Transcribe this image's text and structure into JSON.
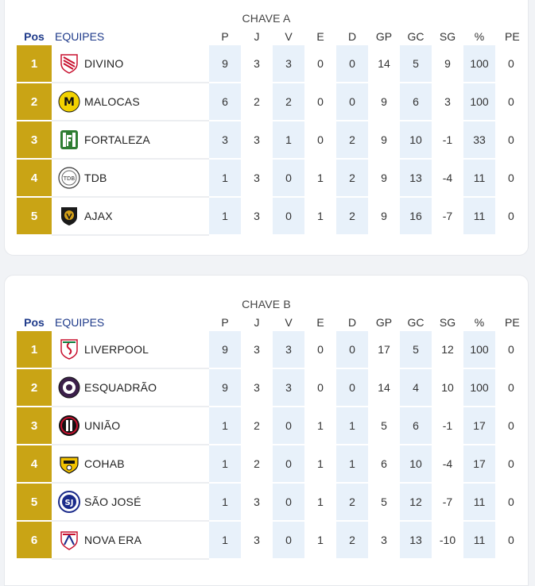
{
  "headers": {
    "pos": "Pos",
    "team": "EQUIPES",
    "p": "P",
    "j": "J",
    "v": "V",
    "e": "E",
    "d": "D",
    "gp": "GP",
    "gc": "GC",
    "sg": "SG",
    "pct": "%",
    "pe": "PE"
  },
  "groups": [
    {
      "title": "CHAVE A",
      "rows": [
        {
          "pos": "1",
          "team": "DIVINO",
          "logo": "divino-crest-icon",
          "p": "9",
          "j": "3",
          "v": "3",
          "e": "0",
          "d": "0",
          "gp": "14",
          "gc": "5",
          "sg": "9",
          "pct": "100",
          "pe": "0"
        },
        {
          "pos": "2",
          "team": "MALOCAS",
          "logo": "malocas-crest-icon",
          "p": "6",
          "j": "2",
          "v": "2",
          "e": "0",
          "d": "0",
          "gp": "9",
          "gc": "6",
          "sg": "3",
          "pct": "100",
          "pe": "0"
        },
        {
          "pos": "3",
          "team": "FORTALEZA",
          "logo": "fortaleza-crest-icon",
          "p": "3",
          "j": "3",
          "v": "1",
          "e": "0",
          "d": "2",
          "gp": "9",
          "gc": "10",
          "sg": "-1",
          "pct": "33",
          "pe": "0"
        },
        {
          "pos": "4",
          "team": "TDB",
          "logo": "tdb-crest-icon",
          "p": "1",
          "j": "3",
          "v": "0",
          "e": "1",
          "d": "2",
          "gp": "9",
          "gc": "13",
          "sg": "-4",
          "pct": "11",
          "pe": "0"
        },
        {
          "pos": "5",
          "team": "AJAX",
          "logo": "ajax-crest-icon",
          "p": "1",
          "j": "3",
          "v": "0",
          "e": "1",
          "d": "2",
          "gp": "9",
          "gc": "16",
          "sg": "-7",
          "pct": "11",
          "pe": "0"
        }
      ]
    },
    {
      "title": "CHAVE B",
      "rows": [
        {
          "pos": "1",
          "team": "LIVERPOOL",
          "logo": "liverpool-crest-icon",
          "p": "9",
          "j": "3",
          "v": "3",
          "e": "0",
          "d": "0",
          "gp": "17",
          "gc": "5",
          "sg": "12",
          "pct": "100",
          "pe": "0"
        },
        {
          "pos": "2",
          "team": "ESQUADRÃO",
          "logo": "esquadrao-crest-icon",
          "p": "9",
          "j": "3",
          "v": "3",
          "e": "0",
          "d": "0",
          "gp": "14",
          "gc": "4",
          "sg": "10",
          "pct": "100",
          "pe": "0"
        },
        {
          "pos": "3",
          "team": "UNIÃO",
          "logo": "uniao-crest-icon",
          "p": "1",
          "j": "2",
          "v": "0",
          "e": "1",
          "d": "1",
          "gp": "5",
          "gc": "6",
          "sg": "-1",
          "pct": "17",
          "pe": "0"
        },
        {
          "pos": "4",
          "team": "COHAB",
          "logo": "cohab-crest-icon",
          "p": "1",
          "j": "2",
          "v": "0",
          "e": "1",
          "d": "1",
          "gp": "6",
          "gc": "10",
          "sg": "-4",
          "pct": "17",
          "pe": "0"
        },
        {
          "pos": "5",
          "team": "SÃO JOSÉ",
          "logo": "sao-jose-crest-icon",
          "p": "1",
          "j": "3",
          "v": "0",
          "e": "1",
          "d": "2",
          "gp": "5",
          "gc": "12",
          "sg": "-7",
          "pct": "11",
          "pe": "0"
        },
        {
          "pos": "6",
          "team": "NOVA ERA",
          "logo": "nova-era-crest-icon",
          "p": "1",
          "j": "3",
          "v": "0",
          "e": "1",
          "d": "2",
          "gp": "3",
          "gc": "13",
          "sg": "-10",
          "pct": "11",
          "pe": "0"
        }
      ]
    }
  ],
  "colors": {
    "position_cell": "#c9a415",
    "highlight_column": "#e8f1fa",
    "header_accent": "#1e3a8a"
  }
}
